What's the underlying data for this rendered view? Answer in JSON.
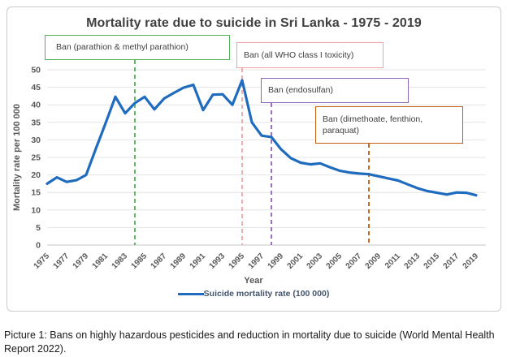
{
  "figure": {
    "caption": "Picture 1: Bans on highly hazardous pesticides and reduction in mortality due to suicide (World Mental Health Report 2022)."
  },
  "chart_data": {
    "type": "line",
    "title": "Mortality rate due to suicide in Sri Lanka - 1975 - 2019",
    "xlabel": "Year",
    "ylabel": "Mortality rate per 100 000",
    "ylim": [
      0,
      50
    ],
    "ytick_step": 5,
    "grid": true,
    "legend_position": "bottom",
    "axis_color": "#595959",
    "gridline_color": "#e4e4e4",
    "zeroline_color": "#c6c6c6",
    "x": [
      1975,
      1976,
      1977,
      1978,
      1979,
      1980,
      1981,
      1982,
      1983,
      1984,
      1985,
      1986,
      1987,
      1988,
      1989,
      1990,
      1991,
      1992,
      1993,
      1994,
      1995,
      1996,
      1997,
      1998,
      1999,
      2000,
      2001,
      2002,
      2003,
      2004,
      2005,
      2006,
      2007,
      2008,
      2009,
      2010,
      2011,
      2012,
      2013,
      2014,
      2015,
      2016,
      2017,
      2018,
      2019
    ],
    "xtick_labels": [
      "1975",
      "1977",
      "1979",
      "1981",
      "1983",
      "1985",
      "1987",
      "1989",
      "1991",
      "1993",
      "1995",
      "1997",
      "1999",
      "2001",
      "2003",
      "2005",
      "2007",
      "2009",
      "2011",
      "2013",
      "2015",
      "2017",
      "2019"
    ],
    "series": [
      {
        "name": "Suicide mortality rate (100 000)",
        "color": "#1f6cbf",
        "values": [
          17.5,
          19.3,
          18.0,
          18.5,
          20.0,
          27.5,
          34.8,
          42.3,
          37.6,
          40.5,
          42.3,
          38.7,
          41.8,
          43.4,
          44.9,
          45.7,
          38.5,
          42.9,
          43.0,
          40.0,
          47.0,
          35.0,
          31.2,
          30.8,
          27.3,
          24.8,
          23.5,
          23.0,
          23.3,
          22.2,
          21.2,
          20.7,
          20.4,
          20.2,
          19.6,
          19.0,
          18.4,
          17.3,
          16.2,
          15.4,
          14.9,
          14.4,
          15.0,
          14.9,
          14.2
        ]
      }
    ],
    "annotations": [
      {
        "label": "Ban (parathion & methyl parathion)",
        "year": 1984,
        "color": "#54b054"
      },
      {
        "label": "Ban (all WHO class I toxicity)",
        "year": 1995,
        "color": "#f2a2a2"
      },
      {
        "label": "Ban (endosulfan)",
        "year": 1998,
        "color": "#8c64b8"
      },
      {
        "label": "Ban (dimethoate, fenthion, paraquat)",
        "year": 2008,
        "color": "#c55a11"
      }
    ]
  }
}
